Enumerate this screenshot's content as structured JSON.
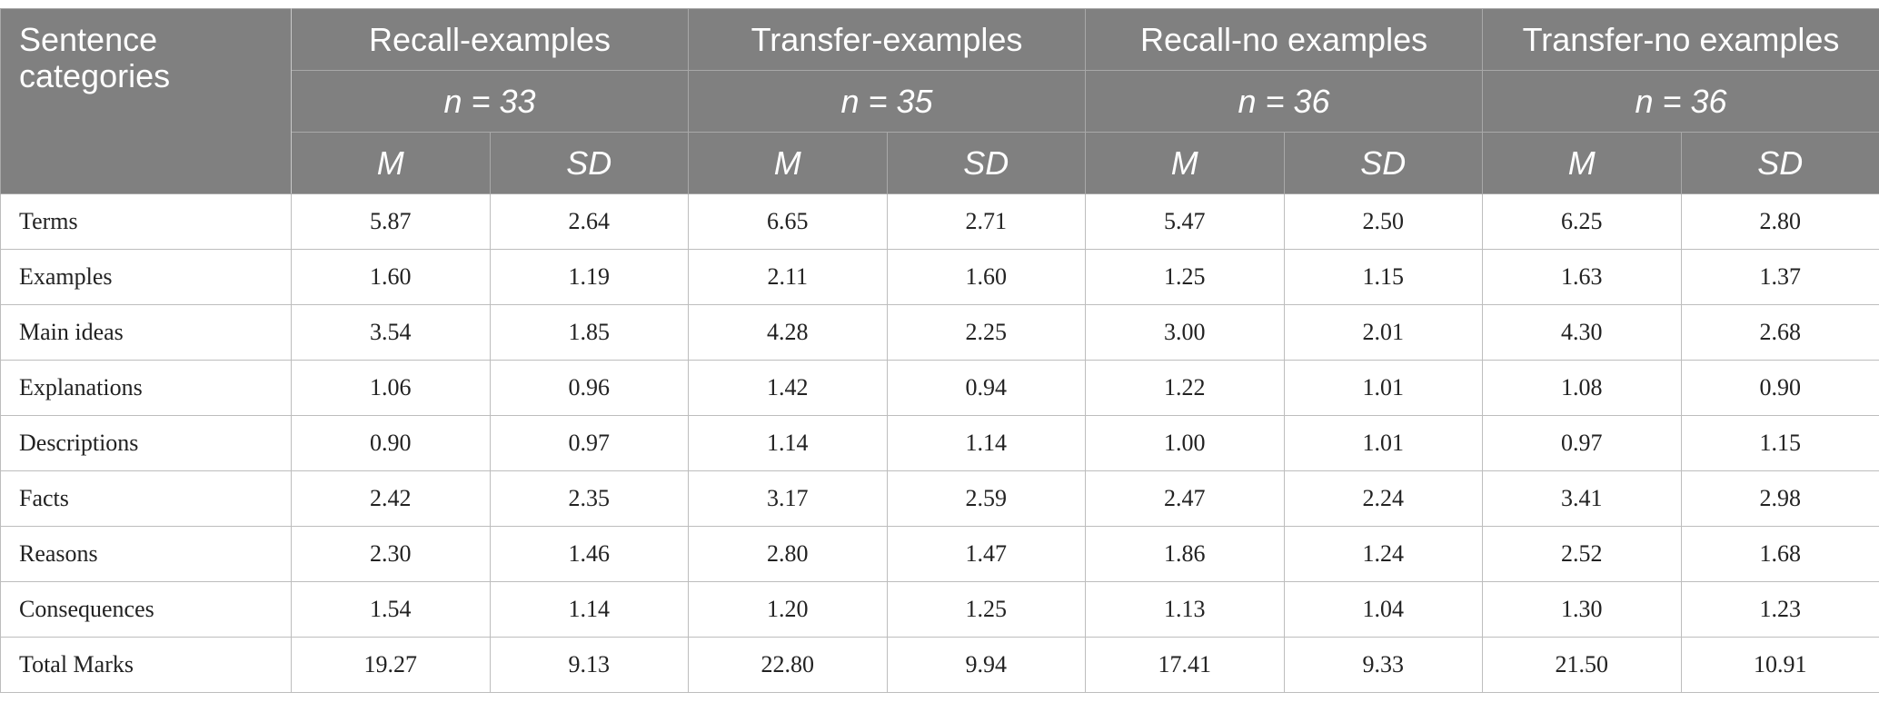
{
  "table": {
    "corner": "Sentence categories",
    "groups": [
      {
        "name": "Recall-examples",
        "n": "n = 33",
        "stats": [
          "M",
          "SD"
        ]
      },
      {
        "name": "Transfer-examples",
        "n": "n = 35",
        "stats": [
          "M",
          "SD"
        ]
      },
      {
        "name": "Recall-no examples",
        "n": "n = 36",
        "stats": [
          "M",
          "SD"
        ]
      },
      {
        "name": "Transfer-no examples",
        "n": "n = 36",
        "stats": [
          "M",
          "SD"
        ]
      }
    ],
    "rows": [
      {
        "label": "Terms",
        "values": [
          "5.87",
          "2.64",
          "6.65",
          "2.71",
          "5.47",
          "2.50",
          "6.25",
          "2.80"
        ]
      },
      {
        "label": "Examples",
        "values": [
          "1.60",
          "1.19",
          "2.11",
          "1.60",
          "1.25",
          "1.15",
          "1.63",
          "1.37"
        ]
      },
      {
        "label": "Main ideas",
        "values": [
          "3.54",
          "1.85",
          "4.28",
          "2.25",
          "3.00",
          "2.01",
          "4.30",
          "2.68"
        ]
      },
      {
        "label": "Explanations",
        "values": [
          "1.06",
          "0.96",
          "1.42",
          "0.94",
          "1.22",
          "1.01",
          "1.08",
          "0.90"
        ]
      },
      {
        "label": "Descriptions",
        "values": [
          "0.90",
          "0.97",
          "1.14",
          "1.14",
          "1.00",
          "1.01",
          "0.97",
          "1.15"
        ]
      },
      {
        "label": "Facts",
        "values": [
          "2.42",
          "2.35",
          "3.17",
          "2.59",
          "2.47",
          "2.24",
          "3.41",
          "2.98"
        ]
      },
      {
        "label": "Reasons",
        "values": [
          "2.30",
          "1.46",
          "2.80",
          "1.47",
          "1.86",
          "1.24",
          "2.52",
          "1.68"
        ]
      },
      {
        "label": "Consequences",
        "values": [
          "1.54",
          "1.14",
          "1.20",
          "1.25",
          "1.13",
          "1.04",
          "1.30",
          "1.23"
        ]
      },
      {
        "label": "Total Marks",
        "values": [
          "19.27",
          "9.13",
          "22.80",
          "9.94",
          "17.41",
          "9.33",
          "21.50",
          "10.91"
        ]
      }
    ]
  }
}
